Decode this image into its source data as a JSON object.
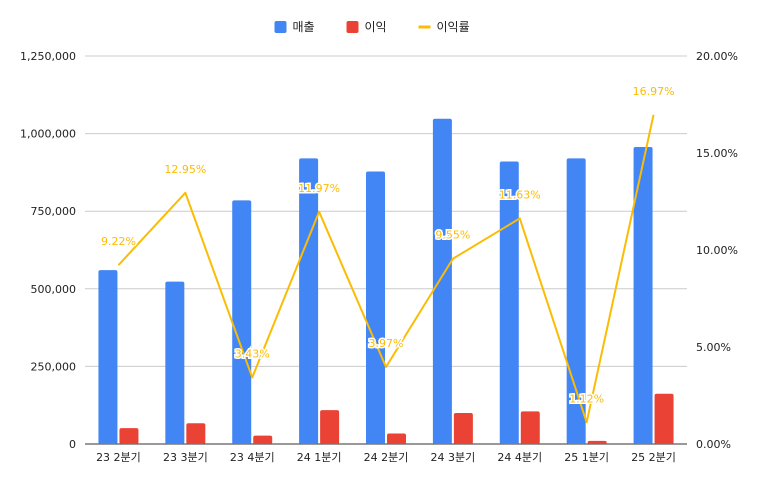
{
  "chart_data": {
    "type": "bar",
    "categories": [
      "23 2분기",
      "23 3분기",
      "23 4분기",
      "24 1분기",
      "24 2분기",
      "24 3분기",
      "24 4분기",
      "25 1분기",
      "25 2분기"
    ],
    "series": [
      {
        "name": "매출",
        "type": "bar",
        "axis": "left",
        "color": "#4285f4",
        "values": [
          560000,
          523000,
          785000,
          920000,
          878000,
          1048000,
          910000,
          920000,
          957000
        ]
      },
      {
        "name": "이익",
        "type": "bar",
        "axis": "left",
        "color": "#ea4335",
        "values": [
          51000,
          67000,
          27000,
          109000,
          34000,
          100000,
          105000,
          10000,
          162000
        ]
      },
      {
        "name": "이익률",
        "type": "line",
        "axis": "right",
        "color": "#fbbc04",
        "values": [
          9.22,
          12.95,
          3.43,
          11.97,
          3.97,
          9.55,
          11.63,
          1.12,
          16.97
        ],
        "data_labels": [
          "9.22%",
          "12.95%",
          "3.43%",
          "11.97%",
          "3.97%",
          "9.55%",
          "11.63%",
          "1.12%",
          "16.97%"
        ]
      }
    ],
    "left_axis": {
      "ylim": [
        0,
        1250000
      ],
      "ticks": [
        "0",
        "250,000",
        "500,000",
        "750,000",
        "1,000,000",
        "1,250,000"
      ]
    },
    "right_axis": {
      "ylim": [
        0,
        20
      ],
      "ticks": [
        "0.00%",
        "5.00%",
        "10.00%",
        "15.00%",
        "20.00%"
      ]
    },
    "legend_position": "top-center",
    "grid": true
  }
}
